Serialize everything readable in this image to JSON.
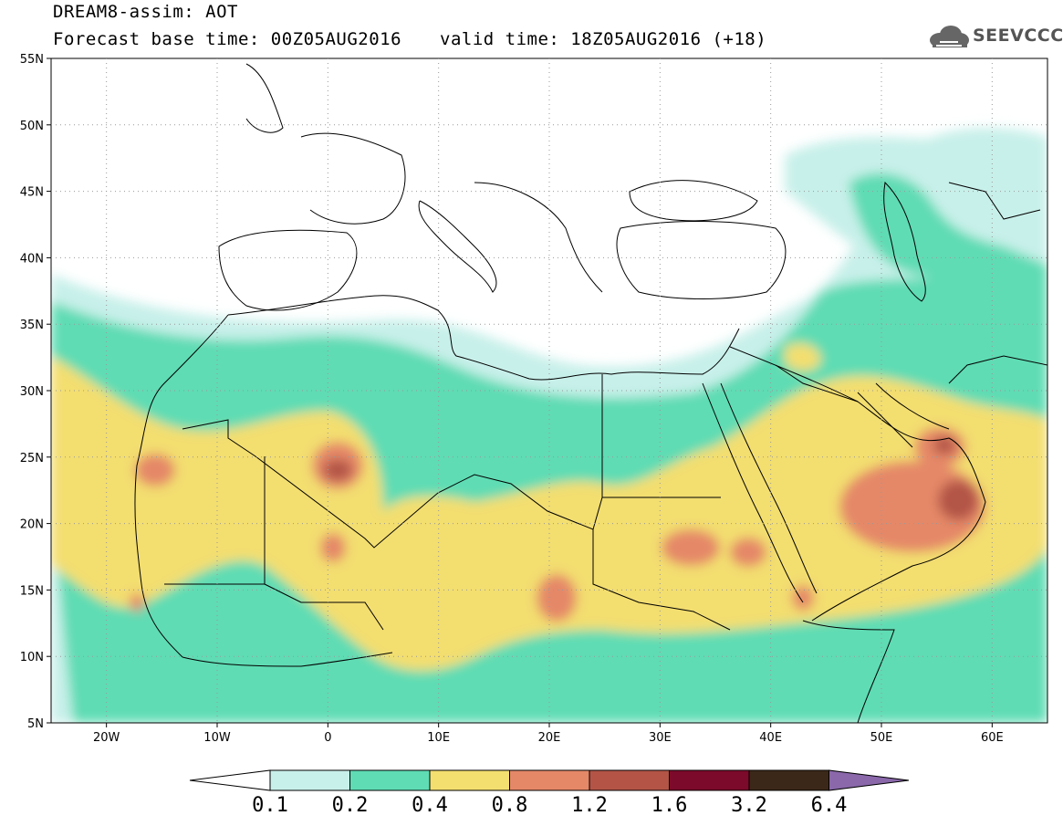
{
  "header": {
    "title": "DREAM8-assim: AOT",
    "base_time": "Forecast base time: 00Z05AUG2016",
    "valid_time": "valid time: 18Z05AUG2016 (+18)",
    "logo_text": "SEEVCCC"
  },
  "map": {
    "variable": "AOT",
    "lon_range": [
      -25,
      65
    ],
    "lat_range": [
      5,
      55
    ],
    "lat_labels": [
      "55N",
      "50N",
      "45N",
      "40N",
      "35N",
      "30N",
      "25N",
      "20N",
      "15N",
      "10N",
      "5N"
    ],
    "lon_labels": [
      "20W",
      "10W",
      "0",
      "10E",
      "20E",
      "30E",
      "40E",
      "50E",
      "60E"
    ]
  },
  "colorbar": {
    "levels": [
      "0.1",
      "0.2",
      "0.4",
      "0.8",
      "1.2",
      "1.6",
      "3.2",
      "6.4"
    ],
    "colors": [
      "#c8f0ea",
      "#5fdcb4",
      "#f3de70",
      "#e58868",
      "#b35447",
      "#7c0a2a",
      "#3c2819",
      "#8a68aa"
    ],
    "under_color": "#ffffff"
  }
}
